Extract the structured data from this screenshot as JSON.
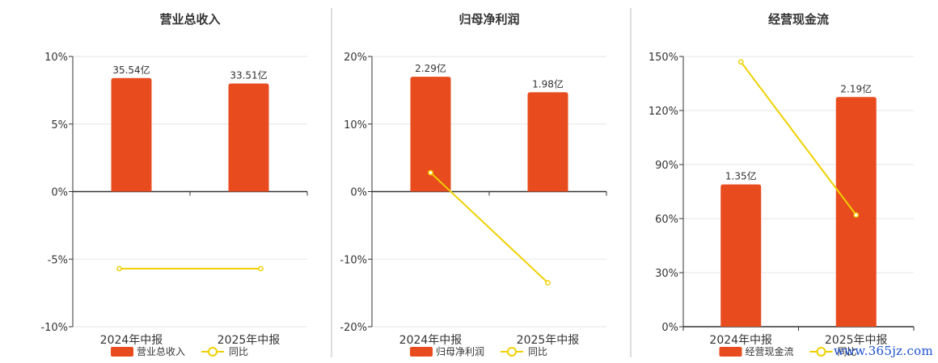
{
  "colors": {
    "bar": "#e84c1e",
    "line": "#f0d000",
    "axis": "#333333",
    "grid": "#e6e6e6",
    "divider": "#bbbbbb",
    "text": "#333333"
  },
  "watermark": "www.365jz.com",
  "chart_data": [
    {
      "type": "bar+line",
      "title": "营业总收入",
      "categories": [
        "2024年中报",
        "2025年中报"
      ],
      "series": [
        {
          "name": "营业总收入",
          "kind": "bar",
          "values": [
            8.4,
            8.0
          ],
          "labels": [
            "35.54亿",
            "33.51亿"
          ]
        },
        {
          "name": "同比",
          "kind": "line",
          "values": [
            -5.7,
            -5.7
          ]
        }
      ],
      "ylim": [
        -10,
        10
      ],
      "yticks": [
        10,
        5,
        0,
        -5,
        -10
      ],
      "ytick_labels": [
        "10%",
        "5%",
        "0%",
        "-5%",
        "-10%"
      ],
      "grid": true,
      "legend": "bottom"
    },
    {
      "type": "bar+line",
      "title": "归母净利润",
      "categories": [
        "2024年中报",
        "2025年中报"
      ],
      "series": [
        {
          "name": "归母净利润",
          "kind": "bar",
          "values": [
            17.0,
            14.7
          ],
          "labels": [
            "2.29亿",
            "1.98亿"
          ]
        },
        {
          "name": "同比",
          "kind": "line",
          "values": [
            2.8,
            -13.5
          ]
        }
      ],
      "ylim": [
        -20,
        20
      ],
      "yticks": [
        20,
        10,
        0,
        -10,
        -20
      ],
      "ytick_labels": [
        "20%",
        "10%",
        "0%",
        "-10%",
        "-20%"
      ],
      "grid": true,
      "legend": "bottom"
    },
    {
      "type": "bar+line",
      "title": "经营现金流",
      "categories": [
        "2024年中报",
        "2025年中报"
      ],
      "series": [
        {
          "name": "经营现金流",
          "kind": "bar",
          "values": [
            79,
            127.5
          ],
          "labels": [
            "1.35亿",
            "2.19亿"
          ]
        },
        {
          "name": "同比",
          "kind": "line",
          "values": [
            147,
            62
          ]
        }
      ],
      "ylim": [
        0,
        150
      ],
      "yticks": [
        150,
        120,
        90,
        60,
        30,
        0
      ],
      "ytick_labels": [
        "150%",
        "120%",
        "90%",
        "60%",
        "30%",
        "0%"
      ],
      "grid": true,
      "legend": "bottom"
    }
  ]
}
